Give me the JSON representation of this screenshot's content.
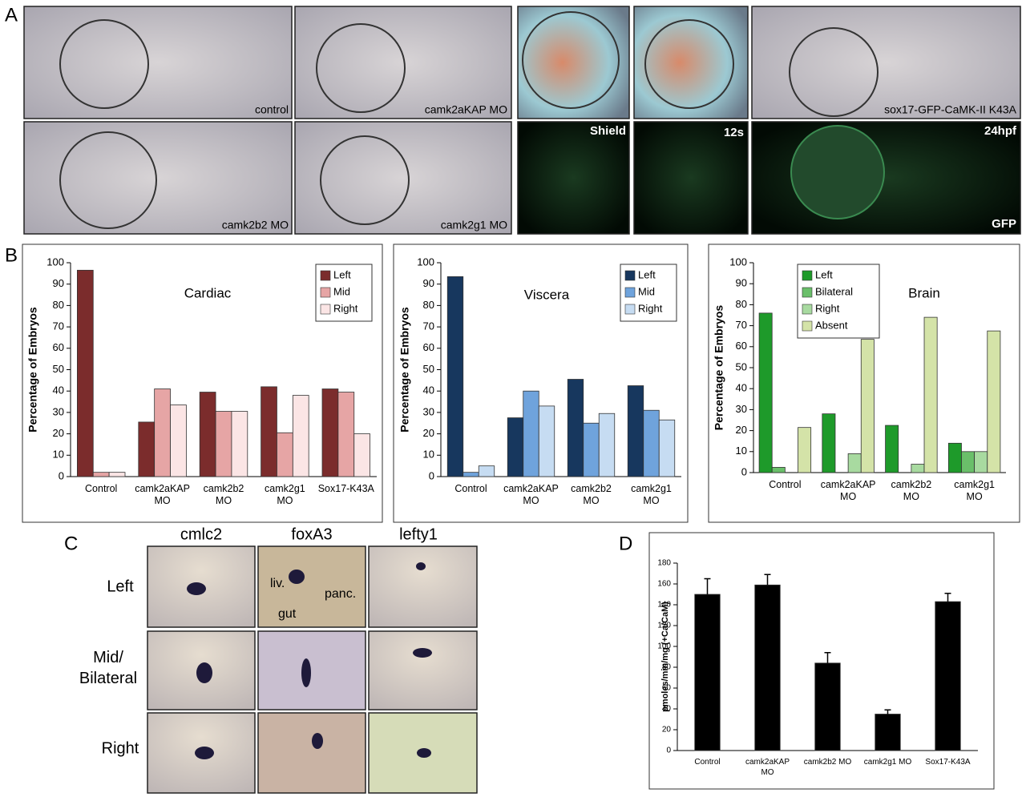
{
  "panel_labels": [
    "A",
    "B",
    "C",
    "D"
  ],
  "panel_a": {
    "labels": [
      "control",
      "camk2aKAP MO",
      "sox17-GFP-CaMK-II K43A",
      "camk2b2 MO",
      "camk2g1 MO"
    ],
    "fluorescence": [
      "Shield",
      "12s",
      "24hpf",
      "GFP"
    ]
  },
  "panel_c": {
    "columns": [
      "cmlc2",
      "foxA3",
      "lefty1"
    ],
    "rows": [
      "Left",
      "Mid/ Bilateral",
      "Right"
    ],
    "annotations": [
      "liv.",
      "panc.",
      "gut"
    ]
  },
  "chart_data": [
    {
      "type": "bar",
      "title": "Cardiac",
      "ylabel": "Percentage of Embryos",
      "categories": [
        "Control",
        "camk2aKAP MO",
        "camk2b2 MO",
        "camk2g1 MO",
        "Sox17-K43A"
      ],
      "series": [
        {
          "name": "Left",
          "color": "#7b2c2c",
          "values": [
            96.5,
            25.5,
            39.5,
            42,
            41
          ]
        },
        {
          "name": "Mid",
          "color": "#e6a5a5",
          "values": [
            2,
            41,
            30.5,
            20.5,
            39.5
          ]
        },
        {
          "name": "Right",
          "color": "#fbe5e5",
          "values": [
            2,
            33.5,
            30.5,
            38,
            20
          ]
        }
      ],
      "ylim": [
        0,
        100
      ],
      "yticks": [
        0,
        10,
        20,
        30,
        40,
        50,
        60,
        70,
        80,
        90,
        100
      ],
      "legend": "upper right"
    },
    {
      "type": "bar",
      "title": "Viscera",
      "ylabel": "Percentage of Embryos",
      "categories": [
        "Control",
        "camk2aKAP MO",
        "camk2b2 MO",
        "camk2g1 MO"
      ],
      "series": [
        {
          "name": "Left",
          "color": "#17375e",
          "values": [
            93.5,
            27.5,
            45.5,
            42.5
          ]
        },
        {
          "name": "Mid",
          "color": "#6fa3dc",
          "values": [
            2,
            40,
            25,
            31
          ]
        },
        {
          "name": "Right",
          "color": "#c6dcf2",
          "values": [
            5,
            33,
            29.5,
            26.5
          ]
        }
      ],
      "ylim": [
        0,
        100
      ],
      "yticks": [
        0,
        10,
        20,
        30,
        40,
        50,
        60,
        70,
        80,
        90,
        100
      ],
      "legend": "upper right"
    },
    {
      "type": "bar",
      "title": "Brain",
      "ylabel": "Percentage of Embryos",
      "categories": [
        "Control",
        "camk2aKAP MO",
        "camk2b2 MO",
        "camk2g1 MO"
      ],
      "series": [
        {
          "name": "Left",
          "color": "#1e9a2a",
          "values": [
            76,
            28,
            22.5,
            14
          ]
        },
        {
          "name": "Bilateral",
          "color": "#6abf6a",
          "values": [
            2.5,
            0,
            0,
            10
          ]
        },
        {
          "name": "Right",
          "color": "#a8daa0",
          "values": [
            0,
            9,
            4,
            10
          ]
        },
        {
          "name": "Absent",
          "color": "#d4e3a8",
          "values": [
            21.5,
            63.5,
            74,
            67.5
          ]
        }
      ],
      "ylim": [
        0,
        100
      ],
      "yticks": [
        0,
        10,
        20,
        30,
        40,
        50,
        60,
        70,
        80,
        90,
        100
      ],
      "legend": "upper left"
    },
    {
      "type": "bar",
      "ylabel": "pmoles/min/mg (+Ca/CaM)",
      "categories": [
        "Control",
        "camk2aKAP MO",
        "camk2b2 MO",
        "camk2g1 MO",
        "Sox17-K43A"
      ],
      "values": [
        150,
        159,
        84,
        35,
        143
      ],
      "errors": [
        15,
        10,
        10,
        4,
        8
      ],
      "color": "#000000",
      "ylim": [
        0,
        180
      ],
      "yticks": [
        0,
        20,
        40,
        60,
        80,
        100,
        120,
        140,
        160,
        180
      ]
    }
  ]
}
